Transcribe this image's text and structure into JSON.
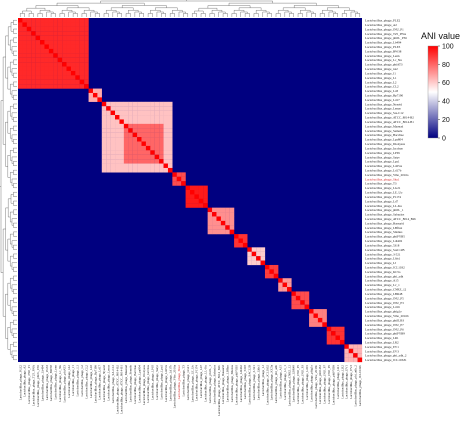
{
  "chart_data": {
    "type": "heatmap",
    "title": "",
    "legend": {
      "title": "ANI value",
      "ticks": [
        0,
        20,
        40,
        60,
        80,
        100
      ],
      "placement": "top-right",
      "colors": {
        "low": "#000080",
        "mid": "#ffffff",
        "high": "#ff0000"
      }
    },
    "labels": [
      "Lactobacillus_phage_PLE2",
      "Lactobacillus_phage_A2",
      "Lactobacillus_phage_JNU_P1",
      "Lactobacillus_phage_T25_PNA",
      "Lactobacillus_phage_phiJL_P36",
      "Lactobacillus_phage_Lb494",
      "Lactobacillus_phage_PLE3",
      "Lactobacillus_phage_BW38",
      "Lactobacillus_phage_Lenn",
      "Lactobacillus_phage_Lc_Nu",
      "Lactobacillus_phage_phiAT3",
      "Lactobacillus_phage_iA2",
      "Lactobacillus_phage_J1",
      "Lactobacillus_phage_L1",
      "Lactobacillus_phage_L2",
      "Lactobacillus_phage_CL2",
      "Lactobacillus_phage_Ld3",
      "Lactobacillus_phage_Bp7190",
      "Lactobacillus_phage_Ld17",
      "Lactobacillus_phage_Nyseid",
      "Lactobacillus_phage_Lenus",
      "Lactobacillus_phage_SA-C12",
      "Lactobacillus_phage_ATCC_8014-B2",
      "Lactobacillus_phage_ATCC_8014-B1",
      "Lactobacillus_phage_Maenad",
      "Lactobacillus_phage_Semele",
      "Lactobacillus_phage_Bacchae",
      "Lactobacillus_phage_Lpa804",
      "Lactobacillus_phage_Dionysus",
      "Lactobacillus_phage_Iacchus",
      "Lactobacillus_phage_LP65",
      "Lactobacillus_phage_Satyr",
      "Lactobacillus_phage_Lpa1",
      "Lactobacillus_phage_Ld25A",
      "Lactobacillus_phage_Ld17b",
      "Lactobacillus_phage_Vibe_2016a",
      "Lactobacillus_phage_Sha1",
      "Lactobacillus_phage_T3",
      "Lactobacillus_phage_LG21",
      "Lactobacillus_phage_LE_Uo",
      "Lactobacillus_phage_P1174",
      "Lactobacillus_phage_Ld7",
      "Lactobacillus_phage_LL-Ku",
      "Lactobacillus_phage_phiJL_1",
      "Lactobacillus_phage_Sabazios",
      "Lactobacillus_phage_ATCC_8014_B2b",
      "Lactobacillus_phage_Bassarid",
      "Lactobacillus_phage_LBflux",
      "Lactobacillus_phage_Silenus",
      "Lactobacillus_phage_phiPYB5",
      "Lactobacillus_phage_Ldi402",
      "Lactobacillus_phage_5318",
      "Lactobacillus_phage_SAC12B",
      "Lactobacillus_phage_3-521",
      "Lactobacillus_phage_Llds1",
      "Lactobacillus_phage_LJ",
      "Lactobacillus_phage_JCL1032",
      "Lactobacillus_phage_KC5a",
      "Lactobacillus_phage_phi_adh",
      "Lactobacillus_phage_A15",
      "Lactobacillus_phage_Lv_1",
      "Lactobacillus_phage_CNRZ_12",
      "Lactobacillus_phage_LBR48",
      "Lactobacillus_phage_JNU_P5",
      "Lactobacillus_phage_JNU_P3",
      "Lactobacillus_phage_Ld16",
      "Lactobacillus_phage_phig1e",
      "Lactobacillus_phage_Vibe_2016b",
      "Lactobacillus_phage_phiJLB3",
      "Lactobacillus_phage_JNU_P7",
      "Lactobacillus_phage_JNU_P6",
      "Lactobacillus_phage_phiPYB9",
      "Lactobacillus_phage_LR1",
      "Lactobacillus_phage_LR2",
      "Lactobacillus_phage_EV1",
      "Lactobacillus_phage_EV3",
      "Lactobacillus_phage_phi_adh_2",
      "Lactobacillus_phage_JCL1032b"
    ],
    "highlighted_labels": [
      "Lactobacillus_phage_Sha1"
    ],
    "blocks": [
      {
        "start": 0,
        "end": 16,
        "value": 92
      },
      {
        "start": 16,
        "end": 19,
        "value": 66
      },
      {
        "start": 19,
        "end": 35,
        "value": 62
      },
      {
        "start": 24,
        "end": 33,
        "value": 80
      },
      {
        "start": 35,
        "end": 38,
        "value": 85
      },
      {
        "start": 38,
        "end": 43,
        "value": 95
      },
      {
        "start": 43,
        "end": 49,
        "value": 72
      },
      {
        "start": 49,
        "end": 52,
        "value": 90
      },
      {
        "start": 52,
        "end": 56,
        "value": 60
      },
      {
        "start": 56,
        "end": 59,
        "value": 88
      },
      {
        "start": 59,
        "end": 62,
        "value": 70
      },
      {
        "start": 62,
        "end": 66,
        "value": 85
      },
      {
        "start": 66,
        "end": 70,
        "value": 75
      },
      {
        "start": 70,
        "end": 74,
        "value": 90
      },
      {
        "start": 74,
        "end": 78,
        "value": 65
      }
    ],
    "background_value": 0,
    "diagonal_value": 100
  }
}
